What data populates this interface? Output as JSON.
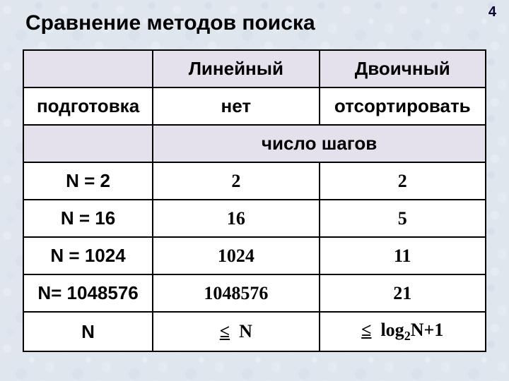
{
  "page_number": "4",
  "title": "Сравнение методов поиска",
  "header": {
    "linear": "Линейный",
    "binary": "Двоичный"
  },
  "prep": {
    "label": "подготовка",
    "linear": "нет",
    "binary": "отсортировать"
  },
  "steps_header": "число шагов",
  "rows": [
    {
      "label": "N = 2",
      "linear": "2",
      "binary": "2"
    },
    {
      "label": "N = 16",
      "linear": "16",
      "binary": "5"
    },
    {
      "label": "N = 1024",
      "linear": "1024",
      "binary": "11"
    },
    {
      "label": "N= 1048576",
      "linear": "1048576",
      "binary": "21"
    }
  ],
  "general": {
    "label": "N",
    "linear_le": "≤",
    "linear_val": "N",
    "binary_le": "≤",
    "binary_log": "log",
    "binary_sub": "2",
    "binary_rest": "N+1"
  },
  "style": {
    "bg_texture": "#dfe6ee",
    "header_fill": "#e4e0ec",
    "border_color": "#000000",
    "text_color": "#000000",
    "highlight_color": "#c00000",
    "font_body": "Times New Roman",
    "font_heading": "Arial",
    "title_fontsize_pt": 22,
    "cell_fontsize_pt": 20,
    "columns": 3,
    "col_widths_pct": [
      28,
      36,
      36
    ]
  }
}
